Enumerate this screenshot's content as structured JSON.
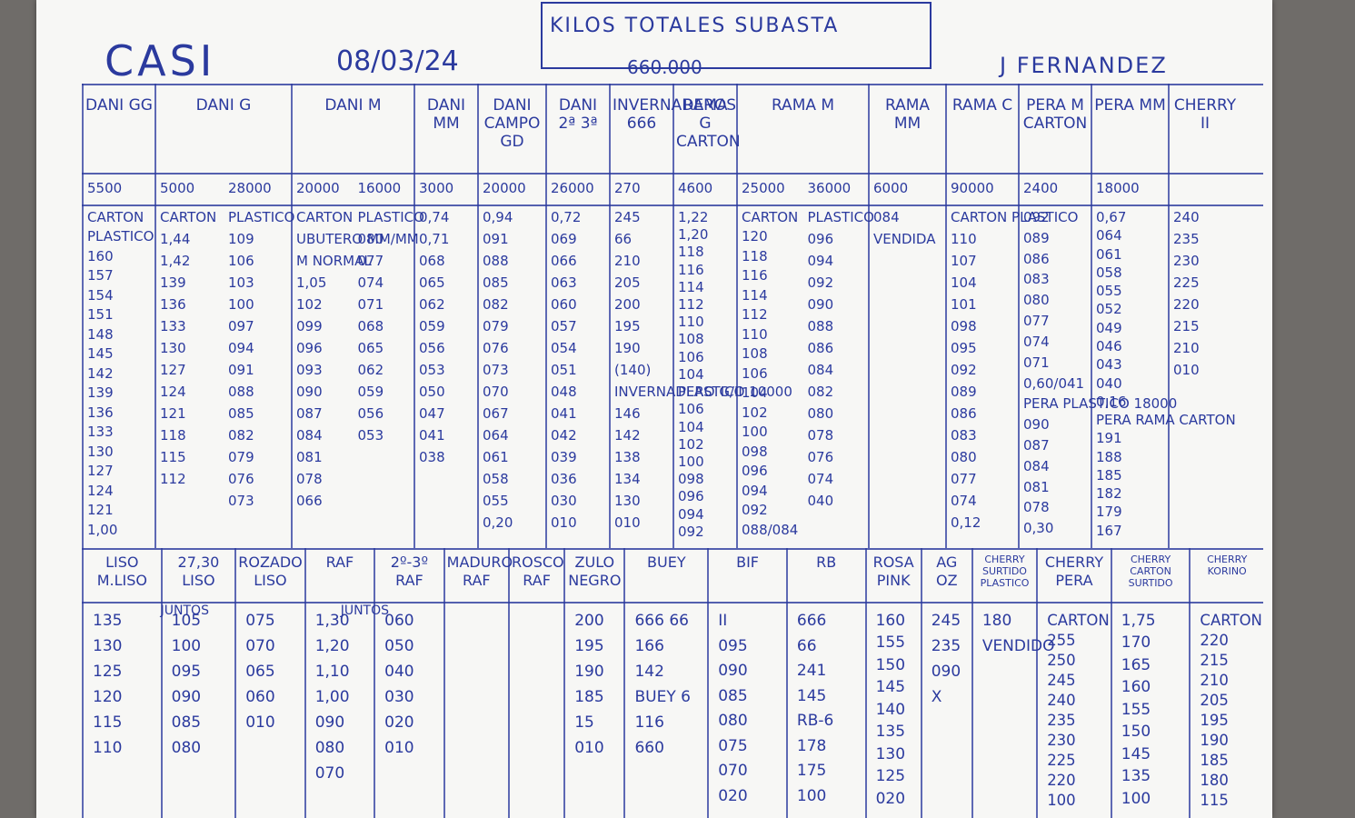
{
  "header": {
    "casi": "CASI",
    "date": "08/03/24",
    "subasta_title": "KILOS TOTALES SUBASTA",
    "subasta_total": "660.000",
    "agent": "J FERNANDEZ"
  },
  "top_columns": [
    {
      "header": "DANI GG",
      "kilos": [
        "5500"
      ],
      "lists": [
        [
          "CARTON",
          "PLASTICO",
          "160",
          "157",
          "154",
          "151",
          "148",
          "145",
          "142",
          "139",
          "136",
          "133",
          "130",
          "127",
          "124",
          "121",
          "1,00"
        ]
      ]
    },
    {
      "header": "DANI G",
      "kilos": [
        "5000",
        "28000"
      ],
      "lists": [
        [
          "CARTON",
          "1,44",
          "1,42",
          "139",
          "136",
          "133",
          "130",
          "127",
          "124",
          "121",
          "118",
          "115",
          "112"
        ],
        [
          "PLASTICO",
          "109",
          "106",
          "103",
          "100",
          "097",
          "094",
          "091",
          "088",
          "085",
          "082",
          "079",
          "076",
          "073"
        ]
      ]
    },
    {
      "header": "DANI M",
      "kilos": [
        "20000",
        "16000"
      ],
      "lists": [
        [
          "CARTON",
          "UBUTERO MM/MM",
          "M NORMAL",
          "1,05",
          "102",
          "099",
          "096",
          "093",
          "090",
          "087",
          "084",
          "081",
          "078",
          "066"
        ],
        [
          "PLASTICO",
          "080",
          "077",
          "074",
          "071",
          "068",
          "065",
          "062",
          "059",
          "056",
          "053"
        ]
      ]
    },
    {
      "header": "DANI MM",
      "kilos": [
        "3000"
      ],
      "lists": [
        [
          "0,74",
          "0,71",
          "068",
          "065",
          "062",
          "059",
          "056",
          "053",
          "050",
          "047",
          "041",
          "038"
        ]
      ]
    },
    {
      "header": "DANI CAMPO GD",
      "kilos": [
        "20000"
      ],
      "lists": [
        [
          "0,94",
          "091",
          "088",
          "085",
          "082",
          "079",
          "076",
          "073",
          "070",
          "067",
          "064",
          "061",
          "058",
          "055",
          "0,20"
        ]
      ]
    },
    {
      "header": "DANI 2ª 3ª",
      "kilos": [
        "26000"
      ],
      "lists": [
        [
          "0,72",
          "069",
          "066",
          "063",
          "060",
          "057",
          "054",
          "051",
          "048",
          "041",
          "042",
          "039",
          "036",
          "030",
          "010"
        ]
      ]
    },
    {
      "header": "INVERNADEROS 666",
      "kilos": [
        "270"
      ],
      "lists": [
        [
          "245",
          "66",
          "210",
          "205",
          "200",
          "195",
          "190",
          "(140)",
          "INVERNADERO G/II",
          "146",
          "142",
          "138",
          "134",
          "130",
          "010"
        ]
      ]
    },
    {
      "header": "RAMA G CARTON",
      "kilos": [
        "4600"
      ],
      "lists": [
        [
          "1,22",
          "1,20",
          "118",
          "116",
          "114",
          "112",
          "110",
          "108",
          "106",
          "104",
          "PLASTICO 10000",
          "106",
          "104",
          "102",
          "100",
          "098",
          "096",
          "094",
          "092"
        ]
      ]
    },
    {
      "header": "RAMA M",
      "kilos": [
        "25000",
        "36000"
      ],
      "lists": [
        [
          "CARTON",
          "120",
          "118",
          "116",
          "114",
          "112",
          "110",
          "108",
          "106",
          "104",
          "102",
          "100",
          "098",
          "096",
          "094",
          "092",
          "088/084"
        ],
        [
          "PLASTICO",
          "096",
          "094",
          "092",
          "090",
          "088",
          "086",
          "084",
          "082",
          "080",
          "078",
          "076",
          "074",
          "040"
        ]
      ]
    },
    {
      "header": "RAMA MM",
      "kilos": [
        "6000"
      ],
      "lists": [
        [
          "084",
          "VENDIDA"
        ]
      ]
    },
    {
      "header": "RAMA C",
      "kilos": [
        "90000"
      ],
      "lists": [
        [
          "CARTON PLASTICO",
          "110",
          "107",
          "104",
          "101",
          "098",
          "095",
          "092",
          "089",
          "086",
          "083",
          "080",
          "077",
          "074",
          "0,12"
        ]
      ]
    },
    {
      "header": "PERA M CARTON",
      "kilos": [
        "2400"
      ],
      "lists": [
        [
          "092",
          "089",
          "086",
          "083",
          "080",
          "077",
          "074",
          "071",
          "0,60/041",
          "PERA PLASTICO 18000",
          "090",
          "087",
          "084",
          "081",
          "078",
          "0,30"
        ]
      ]
    },
    {
      "header": "PERA MM",
      "kilos": [
        "18000"
      ],
      "lists": [
        [
          "0,67",
          "064",
          "061",
          "058",
          "055",
          "052",
          "049",
          "046",
          "043",
          "040",
          "0,16",
          "PERA RAMA CARTON",
          "191",
          "188",
          "185",
          "182",
          "179",
          "167"
        ]
      ]
    },
    {
      "header": "CHERRY II",
      "kilos": [],
      "lists": [
        [
          "240",
          "235",
          "230",
          "225",
          "220",
          "215",
          "210",
          "010"
        ]
      ]
    }
  ],
  "bottom_columns": [
    {
      "header": "LISO M.LISO",
      "values": [
        "135",
        "130",
        "125",
        "120",
        "115",
        "110"
      ]
    },
    {
      "header": "27,30 LISO",
      "values": [
        "105",
        "100",
        "095",
        "090",
        "085",
        "080"
      ]
    },
    {
      "header": "ROZADO LISO",
      "values": [
        "075",
        "070",
        "065",
        "060",
        "010"
      ]
    },
    {
      "header": "RAF",
      "values": [
        "1,30",
        "1,20",
        "1,10",
        "1,00",
        "090",
        "080",
        "070"
      ]
    },
    {
      "header": "2º-3º RAF",
      "values": [
        "060",
        "050",
        "040",
        "030",
        "020",
        "010"
      ]
    },
    {
      "header": "MADURO RAF",
      "values": []
    },
    {
      "header": "ROSCO RAF",
      "values": []
    },
    {
      "header": "ZULO NEGRO",
      "values": [
        "200",
        "195",
        "190",
        "185",
        "15",
        "010"
      ]
    },
    {
      "header": "BUEY",
      "values": [
        "666 66",
        "166",
        "142",
        "BUEY 6",
        "116",
        "660"
      ]
    },
    {
      "header": "BIF",
      "values": [
        "II",
        "095",
        "090",
        "085",
        "080",
        "075",
        "070",
        "020"
      ]
    },
    {
      "header": "RB",
      "values": [
        "666",
        "66",
        "241",
        "145",
        "RB-6",
        "178",
        "175",
        "100"
      ]
    },
    {
      "header": "ROSA PINK",
      "values": [
        "160",
        "155",
        "150",
        "145",
        "140",
        "135",
        "130",
        "125",
        "020"
      ]
    },
    {
      "header": "AG OZ",
      "values": [
        "245",
        "235",
        "090",
        "X"
      ]
    },
    {
      "header": "CHERRY SURTIDO PLASTICO",
      "values": [
        "180",
        "VENDIDO"
      ]
    },
    {
      "header": "CHERRY PERA",
      "values": [
        "CARTON",
        "255",
        "250",
        "245",
        "240",
        "235",
        "230",
        "225",
        "220",
        "100"
      ]
    },
    {
      "header": "CHERRY CARTON SURTIDO",
      "values": [
        "1,75",
        "170",
        "165",
        "160",
        "155",
        "150",
        "145",
        "135",
        "100"
      ]
    },
    {
      "header": "CHERRY KORINO",
      "values": [
        "CARTON",
        "220",
        "215",
        "210",
        "205",
        "195",
        "190",
        "185",
        "180",
        "115"
      ]
    }
  ],
  "bottom_notes": [
    "JUNTOS",
    "JUNTOS"
  ]
}
